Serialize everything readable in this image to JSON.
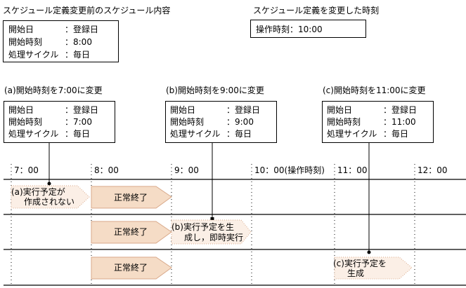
{
  "before": {
    "title": "スケジュール定義変更前のスケジュール内容",
    "rows": [
      [
        "開始日",
        "：登録日"
      ],
      [
        "開始時刻",
        "：8:00"
      ],
      [
        "処理サイクル",
        "：毎日"
      ]
    ]
  },
  "change": {
    "title": "スケジュール定義を変更した時刻",
    "value": "操作時刻：10:00"
  },
  "cases": [
    {
      "label": "(a)開始時刻を7:00に変更",
      "rows": [
        [
          "開始日",
          "：登録日"
        ],
        [
          "開始時刻",
          "：7:00"
        ],
        [
          "処理サイクル",
          "：毎日"
        ]
      ]
    },
    {
      "label": "(b)開始時刻を9:00に変更",
      "rows": [
        [
          "開始日",
          "：登録日"
        ],
        [
          "開始時刻",
          "：9:00"
        ],
        [
          "処理サイクル",
          "：毎日"
        ]
      ]
    },
    {
      "label": "(c)開始時刻を11:00に変更",
      "rows": [
        [
          "開始日",
          "：登録日"
        ],
        [
          "開始時刻",
          "：11:00"
        ],
        [
          "処理サイクル",
          "：毎日"
        ]
      ]
    }
  ],
  "timeline": {
    "ticks": [
      "7：00",
      "8：00",
      "9：00",
      "10：00(操作時刻)",
      "11：00",
      "12：00"
    ],
    "normal_end": "正常終了",
    "a_note": [
      "(a)実行予定が",
      "作成されない"
    ],
    "b_note": [
      "(b)実行予定を生",
      "成し，即時実行"
    ],
    "c_note": [
      "(c)実行予定を",
      "生成"
    ]
  },
  "colors": {
    "completed": "#f5dcc6",
    "planned": "#fbefe6",
    "border": "#d9a98a"
  }
}
